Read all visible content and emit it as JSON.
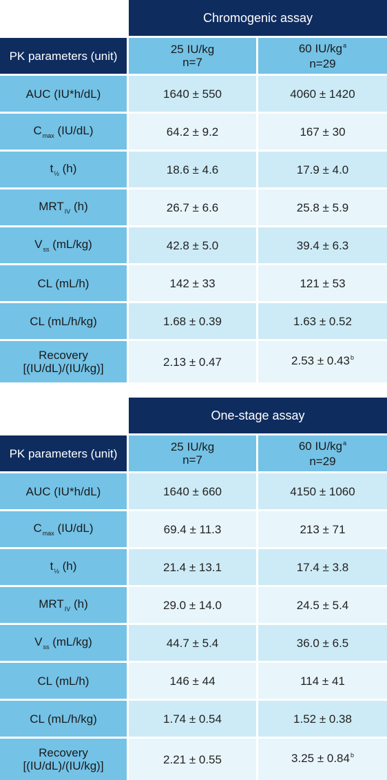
{
  "tables": [
    {
      "title": "Chromogenic assay",
      "param_header": "PK parameters (unit)",
      "groups": [
        {
          "dose": "25 IU/kg",
          "sup": "",
          "n": "n=7"
        },
        {
          "dose": "60 IU/kg",
          "sup": "a",
          "n": "n=29"
        }
      ],
      "rows": [
        {
          "label": "AUC (IU*h/dL)",
          "v1": "1640 ± 550",
          "v2": "4060 ± 1420",
          "v2sup": ""
        },
        {
          "label_main": "C",
          "label_sub": "max",
          "label_rest": " (IU/dL)",
          "v1": "64.2 ± 9.2",
          "v2": "167 ± 30",
          "v2sup": ""
        },
        {
          "label_main": "t",
          "label_sub": "½",
          "label_rest": " (h)",
          "v1": "18.6 ± 4.6",
          "v2": "17.9 ± 4.0",
          "v2sup": ""
        },
        {
          "label_main": "MRT",
          "label_sub": "IV",
          "label_rest": " (h)",
          "v1": "26.7 ± 6.6",
          "v2": "25.8 ± 5.9",
          "v2sup": ""
        },
        {
          "label_main": "V",
          "label_sub": "ss",
          "label_rest": " (mL/kg)",
          "v1": "42.8 ± 5.0",
          "v2": "39.4 ± 6.3",
          "v2sup": ""
        },
        {
          "label": "CL (mL/h)",
          "v1": "142 ± 33",
          "v2": "121 ± 53",
          "v2sup": ""
        },
        {
          "label": "CL (mL/h/kg)",
          "v1": "1.68 ± 0.39",
          "v2": "1.63 ± 0.52",
          "v2sup": ""
        },
        {
          "label": "Recovery",
          "label_line2": "[(IU/dL)/(IU/kg)]",
          "v1": "2.13 ± 0.47",
          "v2": "2.53 ± 0.43",
          "v2sup": "b"
        }
      ]
    },
    {
      "title": "One-stage assay",
      "param_header": "PK parameters (unit)",
      "groups": [
        {
          "dose": "25 IU/kg",
          "sup": "",
          "n": "n=7"
        },
        {
          "dose": "60 IU/kg",
          "sup": "a",
          "n": "n=29"
        }
      ],
      "rows": [
        {
          "label": "AUC (IU*h/dL)",
          "v1": "1640 ± 660",
          "v2": "4150 ± 1060",
          "v2sup": ""
        },
        {
          "label_main": "C",
          "label_sub": "max",
          "label_rest": " (IU/dL)",
          "v1": "69.4 ± 11.3",
          "v2": "213 ± 71",
          "v2sup": ""
        },
        {
          "label_main": "t",
          "label_sub": "½",
          "label_rest": " (h)",
          "v1": "21.4 ± 13.1",
          "v2": "17.4 ± 3.8",
          "v2sup": ""
        },
        {
          "label_main": "MRT",
          "label_sub": "IV",
          "label_rest": " (h)",
          "v1": "29.0 ± 14.0",
          "v2": "24.5 ± 5.4",
          "v2sup": ""
        },
        {
          "label_main": "V",
          "label_sub": "ss",
          "label_rest": " (mL/kg)",
          "v1": "44.7 ± 5.4",
          "v2": "36.0 ± 6.5",
          "v2sup": ""
        },
        {
          "label": "CL (mL/h)",
          "v1": "146 ± 44",
          "v2": "114 ± 41",
          "v2sup": ""
        },
        {
          "label": "CL (mL/h/kg)",
          "v1": "1.74 ± 0.54",
          "v2": "1.52 ± 0.38",
          "v2sup": ""
        },
        {
          "label": "Recovery",
          "label_line2": "[(IU/dL)/(IU/kg)]",
          "v1": "2.21 ± 0.55",
          "v2": "3.25 ± 0.84",
          "v2sup": "b"
        }
      ]
    }
  ],
  "colors": {
    "header_dark": "#0f2c5f",
    "header_light": "#74c2e6",
    "row_dark": "#cdebf6",
    "row_light": "#e8f5fb"
  }
}
